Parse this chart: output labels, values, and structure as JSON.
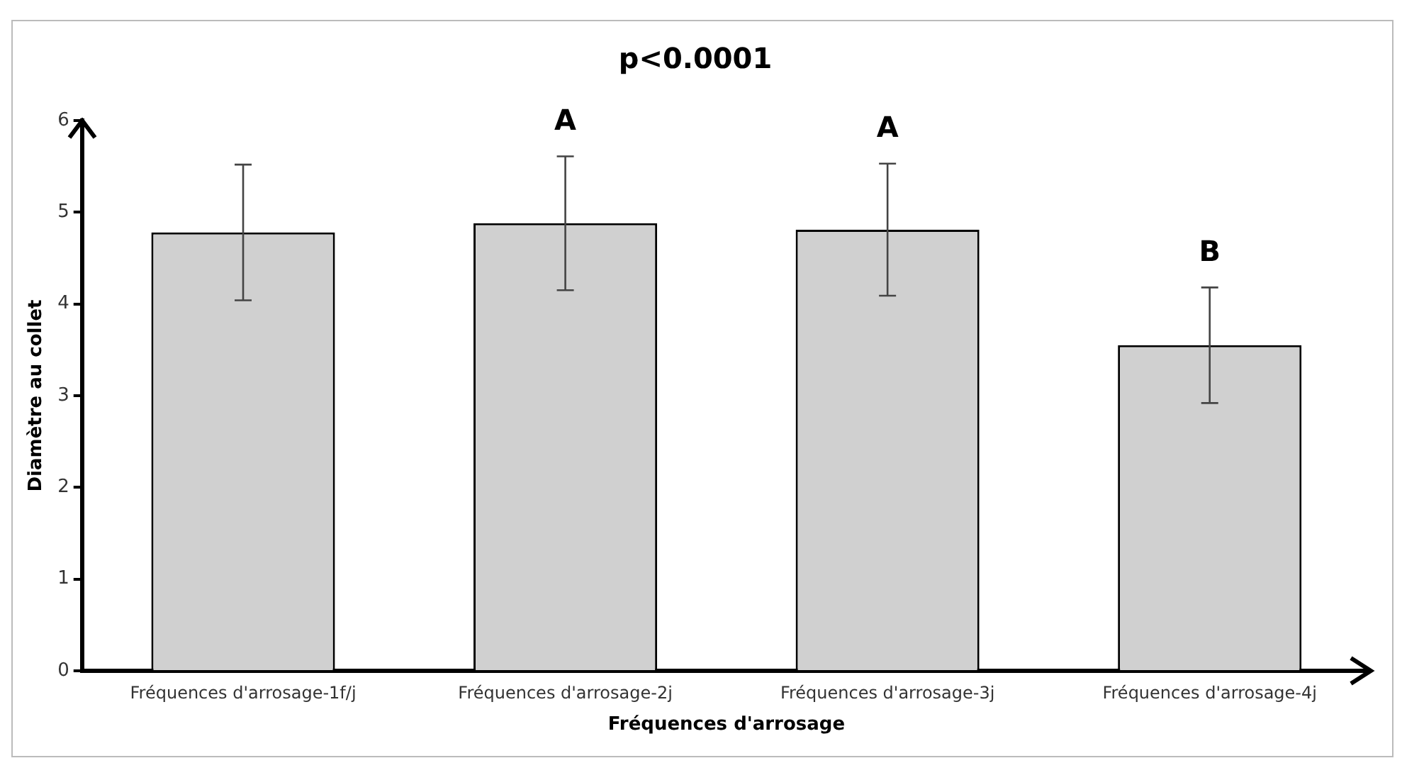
{
  "chart_data": {
    "type": "bar",
    "title": "p<0.0001",
    "xlabel": "Fréquences d'arrosage",
    "ylabel": "Diamètre au collet",
    "categories": [
      "Fréquences d'arrosage-1f/j",
      "Fréquences d'arrosage-2j",
      "Fréquences d'arrosage-3j",
      "Fréquences d'arrosage-4j"
    ],
    "values": [
      4.78,
      4.88,
      4.81,
      3.55
    ],
    "errors": [
      0.74,
      0.73,
      0.72,
      0.63
    ],
    "color": "#d0d0d0",
    "ylim": [
      0,
      6
    ],
    "yticks": [
      0,
      1,
      2,
      3,
      4,
      5,
      6
    ],
    "grid": false,
    "annotations": [
      {
        "text": "A",
        "x": "Fréquences d'arrosage-2j",
        "y": 5.61
      },
      {
        "text": "A",
        "x": "Fréquences d'arrosage-3j",
        "y": 5.53
      },
      {
        "text": "B",
        "x": "Fréquences d'arrosage-4j",
        "y": 4.18
      }
    ]
  }
}
